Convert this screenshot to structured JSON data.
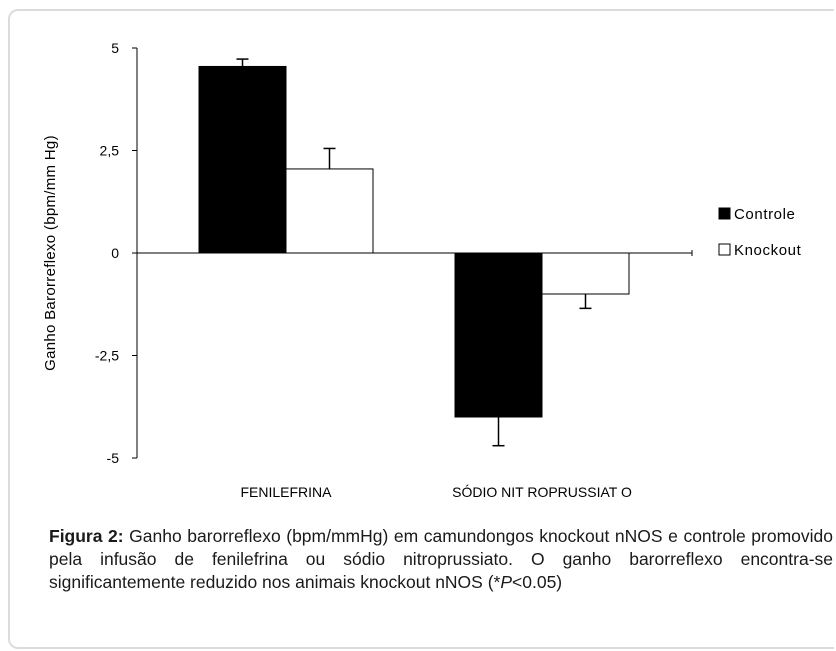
{
  "chart_data": {
    "type": "bar",
    "title": "",
    "xlabel": "",
    "ylabel": "Ganho Barorreflexo (bpm/mm Hg)",
    "ylim": [
      -5,
      5
    ],
    "yticks": [
      5,
      2.5,
      0,
      -2.5,
      -5
    ],
    "ytick_labels": [
      "5",
      "2,5",
      "0",
      "-2,5",
      "-5"
    ],
    "categories": [
      "FENILEFRINA",
      "SÓDIO NIT ROPRUSSIAT O"
    ],
    "series": [
      {
        "name": "Controle",
        "values": [
          4.55,
          -4.0
        ],
        "errors": [
          0.18,
          0.7
        ],
        "color": "#000000"
      },
      {
        "name": "Knockout",
        "values": [
          2.05,
          -1.0
        ],
        "errors": [
          0.5,
          0.35
        ],
        "color": "#ffffff"
      }
    ],
    "legend_position": "right",
    "grid": false
  },
  "caption": {
    "label": "Figura 2:",
    "text_before_p": " Ganho barorreflexo (bpm/mmHg) em camundongos knockout nNOS e controle promovido pela infusão de fenilefrina ou sódio nitroprussiato. O ganho barorreflexo encontra-se significantemente reduzido nos animais knockout nNOS (*",
    "p_symbol": "P",
    "text_after_p": "<0.05)"
  }
}
